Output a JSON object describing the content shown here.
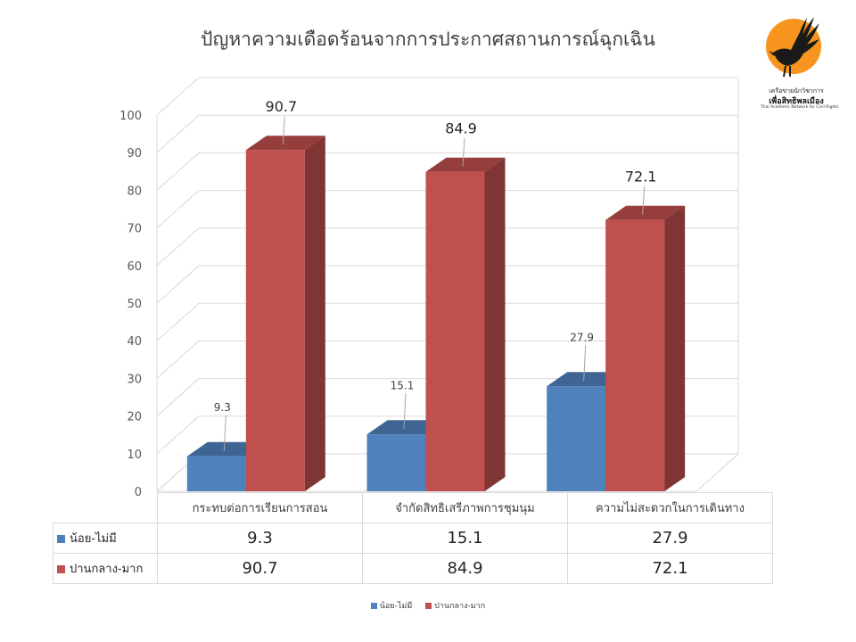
{
  "chart_data": {
    "type": "bar",
    "title": "ปัญหาความเดือดร้อนจากการประกาศสถานการณ์ฉุกเฉิน",
    "categories": [
      "กระทบต่อการเรียนการสอน",
      "จำกัดสิทธิเสรีภาพการชุมนุม",
      "ความไม่สะดวกในการเดินทาง"
    ],
    "series": [
      {
        "name": "น้อย-ไม่มี",
        "values": [
          9.3,
          15.1,
          27.9
        ],
        "color": "#4f81bd",
        "labels": [
          "9.3",
          "15.1",
          "27.9"
        ]
      },
      {
        "name": "ปานกลาง-มาก",
        "values": [
          90.7,
          84.9,
          72.1
        ],
        "color": "#c0504d",
        "labels": [
          "90.7",
          "84.9",
          "72.1"
        ]
      }
    ],
    "ylim": [
      0,
      100
    ],
    "yticks": [
      "0",
      "10",
      "20",
      "30",
      "40",
      "50",
      "60",
      "70",
      "80",
      "90",
      "100"
    ],
    "grid": true,
    "style": "3d-clustered-column",
    "legend_position": "bottom",
    "data_table": true
  },
  "logo": {
    "line1": "เครือข่ายนักวิชาการ",
    "line2": "เพื่อสิทธิพลเมือง",
    "line3": "Thai Academic Network for Civil Rights",
    "circle_color": "#f7941d"
  }
}
